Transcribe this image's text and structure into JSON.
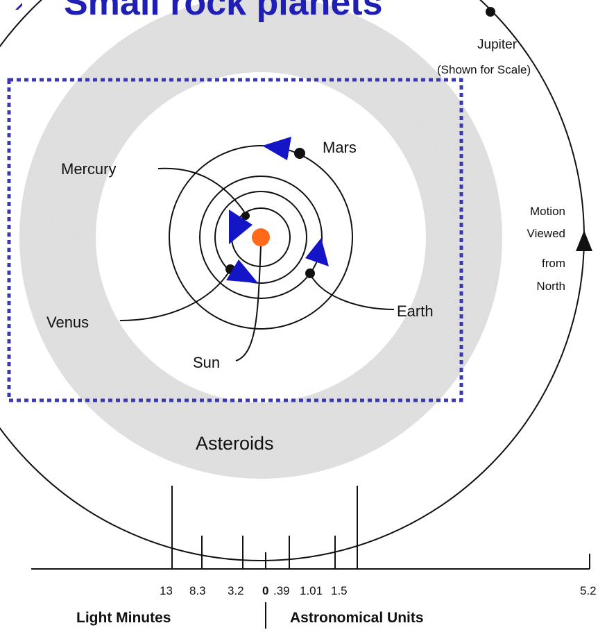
{
  "title": "Small rock  planets",
  "labels": {
    "jupiter": "Jupiter",
    "jupiter_note": "(Shown for Scale)",
    "mars": "Mars",
    "mercury": "Mercury",
    "venus": "Venus",
    "earth": "Earth",
    "sun": "Sun",
    "asteroids": "Asteroids",
    "motion_line1": "Motion",
    "motion_line2": "Viewed",
    "motion_line3": "from",
    "motion_line4": "North"
  },
  "scale": {
    "ticks": [
      "13",
      "8.3",
      "3.2",
      "0",
      ".39",
      "1.01",
      "1.5",
      "5.2"
    ],
    "left_unit": "Light Minutes",
    "right_unit": "Astronomical Units"
  },
  "colors": {
    "title": "#1f1fb4",
    "arrows": "#1515c8",
    "sun": "#ff6a1a",
    "asteroid_belt": "#e2e2e2",
    "dotted_box": "#3a3ab0"
  }
}
